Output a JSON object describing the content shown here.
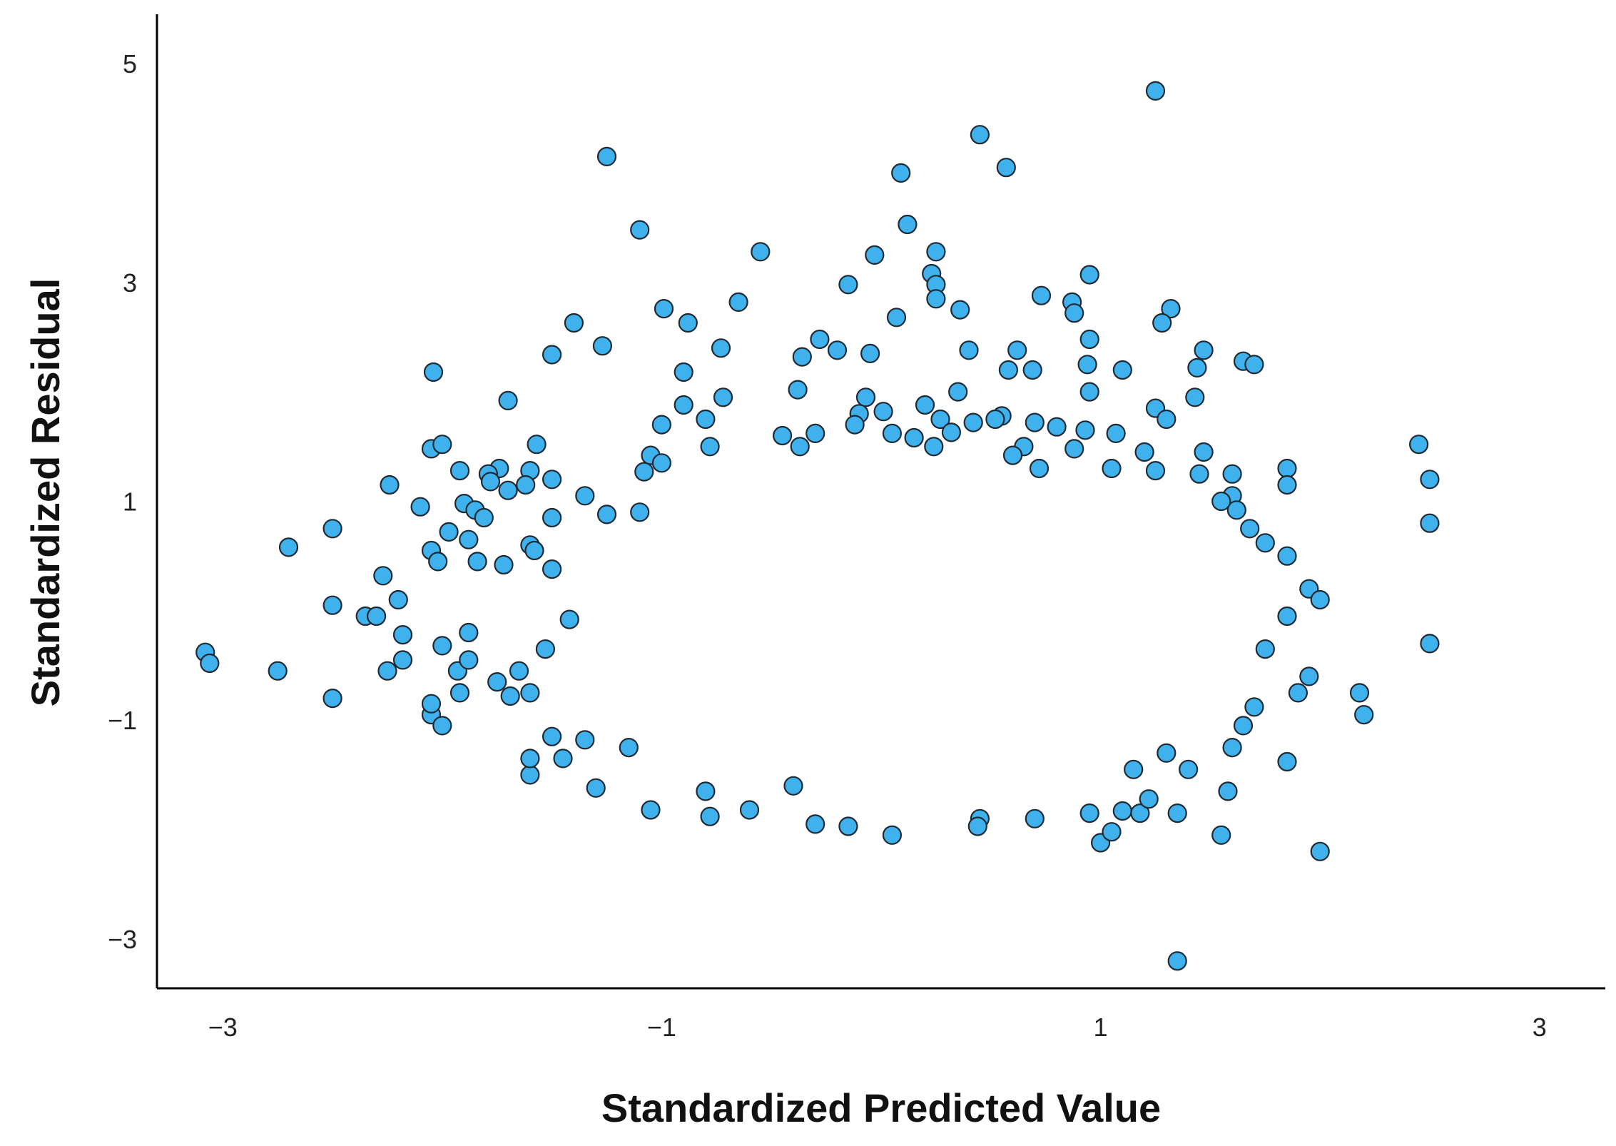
{
  "chart_data": {
    "type": "scatter",
    "title": "",
    "xlabel": "Standardized Predicted Value",
    "ylabel": "Standardized Residual",
    "xlim": [
      -3.3,
      3.3
    ],
    "ylim": [
      -3.45,
      5.45
    ],
    "xticks": [
      -3,
      -1,
      1,
      3
    ],
    "yticks": [
      -3,
      -1,
      1,
      3,
      5
    ],
    "xtick_labels": [
      "−3",
      "−1",
      "1",
      "3"
    ],
    "ytick_labels": [
      "−3",
      "−1",
      "1",
      "3",
      "5"
    ],
    "grid": false,
    "legend": "none",
    "marker": {
      "fill": "#3fb2ee",
      "stroke": "#1f2a33"
    },
    "series": [
      {
        "points": [
          [
            1.25,
            4.75
          ],
          [
            0.45,
            4.35
          ],
          [
            -1.25,
            4.15
          ],
          [
            0.57,
            4.05
          ],
          [
            0.09,
            4.0
          ],
          [
            -1.1,
            3.48
          ],
          [
            0.12,
            3.53
          ],
          [
            -0.55,
            3.28
          ],
          [
            0.25,
            3.28
          ],
          [
            -0.03,
            3.25
          ],
          [
            0.23,
            3.08
          ],
          [
            0.95,
            3.07
          ],
          [
            -0.15,
            2.98
          ],
          [
            0.25,
            2.98
          ],
          [
            0.25,
            2.85
          ],
          [
            0.73,
            2.88
          ],
          [
            0.87,
            2.82
          ],
          [
            -0.65,
            2.82
          ],
          [
            0.36,
            2.75
          ],
          [
            0.88,
            2.72
          ],
          [
            -0.99,
            2.76
          ],
          [
            1.32,
            2.76
          ],
          [
            0.07,
            2.68
          ],
          [
            -1.4,
            2.63
          ],
          [
            -0.88,
            2.63
          ],
          [
            1.28,
            2.63
          ],
          [
            -1.27,
            2.42
          ],
          [
            -1.5,
            2.34
          ],
          [
            -0.28,
            2.48
          ],
          [
            0.95,
            2.48
          ],
          [
            0.4,
            2.38
          ],
          [
            0.62,
            2.38
          ],
          [
            1.47,
            2.38
          ],
          [
            -0.05,
            2.35
          ],
          [
            -0.73,
            2.4
          ],
          [
            -0.36,
            2.32
          ],
          [
            -0.2,
            2.38
          ],
          [
            1.65,
            2.28
          ],
          [
            1.7,
            2.25
          ],
          [
            -2.04,
            2.18
          ],
          [
            0.69,
            2.2
          ],
          [
            1.44,
            2.22
          ],
          [
            1.1,
            2.2
          ],
          [
            -0.9,
            2.18
          ],
          [
            0.58,
            2.2
          ],
          [
            0.94,
            2.25
          ],
          [
            -0.38,
            2.02
          ],
          [
            0.35,
            2.0
          ],
          [
            0.95,
            2.0
          ],
          [
            -0.07,
            1.95
          ],
          [
            0.2,
            1.88
          ],
          [
            0.55,
            1.78
          ],
          [
            1.25,
            1.85
          ],
          [
            1.43,
            1.95
          ],
          [
            1.3,
            1.75
          ],
          [
            -0.72,
            1.95
          ],
          [
            -1.7,
            1.92
          ],
          [
            -0.9,
            1.88
          ],
          [
            0.01,
            1.82
          ],
          [
            -0.1,
            1.8
          ],
          [
            0.27,
            1.75
          ],
          [
            0.42,
            1.72
          ],
          [
            0.52,
            1.75
          ],
          [
            0.7,
            1.72
          ],
          [
            0.8,
            1.68
          ],
          [
            -0.8,
            1.75
          ],
          [
            -1.0,
            1.7
          ],
          [
            -0.12,
            1.7
          ],
          [
            0.05,
            1.62
          ],
          [
            0.32,
            1.63
          ],
          [
            0.93,
            1.65
          ],
          [
            1.07,
            1.62
          ],
          [
            -0.45,
            1.6
          ],
          [
            -0.3,
            1.62
          ],
          [
            0.15,
            1.58
          ],
          [
            -0.78,
            1.5
          ],
          [
            -2.05,
            1.48
          ],
          [
            -1.57,
            1.52
          ],
          [
            -2.0,
            1.52
          ],
          [
            -0.37,
            1.5
          ],
          [
            0.24,
            1.5
          ],
          [
            0.65,
            1.5
          ],
          [
            0.88,
            1.48
          ],
          [
            1.2,
            1.45
          ],
          [
            -1.05,
            1.42
          ],
          [
            -1.0,
            1.35
          ],
          [
            0.6,
            1.42
          ],
          [
            1.47,
            1.45
          ],
          [
            2.45,
            1.52
          ],
          [
            2.5,
            1.2
          ],
          [
            -1.74,
            1.3
          ],
          [
            -1.6,
            1.28
          ],
          [
            -1.92,
            1.28
          ],
          [
            -1.79,
            1.25
          ],
          [
            -1.08,
            1.27
          ],
          [
            0.72,
            1.3
          ],
          [
            1.05,
            1.3
          ],
          [
            1.25,
            1.28
          ],
          [
            1.45,
            1.25
          ],
          [
            1.6,
            1.25
          ],
          [
            1.85,
            1.3
          ],
          [
            -1.78,
            1.18
          ],
          [
            -1.62,
            1.15
          ],
          [
            -2.24,
            1.15
          ],
          [
            -1.5,
            1.2
          ],
          [
            1.85,
            1.15
          ],
          [
            -1.7,
            1.1
          ],
          [
            -1.35,
            1.05
          ],
          [
            1.6,
            1.05
          ],
          [
            -1.9,
            0.98
          ],
          [
            -1.85,
            0.92
          ],
          [
            -1.5,
            0.85
          ],
          [
            -1.25,
            0.88
          ],
          [
            -1.1,
            0.9
          ],
          [
            -2.1,
            0.95
          ],
          [
            -1.81,
            0.85
          ],
          [
            -2.5,
            0.75
          ],
          [
            -1.97,
            0.72
          ],
          [
            -1.88,
            0.65
          ],
          [
            -1.6,
            0.6
          ],
          [
            -1.58,
            0.55
          ],
          [
            -2.05,
            0.55
          ],
          [
            -2.02,
            0.45
          ],
          [
            -1.84,
            0.45
          ],
          [
            -1.72,
            0.42
          ],
          [
            -1.5,
            0.38
          ],
          [
            -2.7,
            0.58
          ],
          [
            -2.5,
            0.05
          ],
          [
            -2.35,
            -0.05
          ],
          [
            -2.25,
            -0.55
          ],
          [
            -2.2,
            0.1
          ],
          [
            -2.3,
            -0.05
          ],
          [
            -2.27,
            0.32
          ],
          [
            -2.18,
            -0.22
          ],
          [
            -2.18,
            -0.45
          ],
          [
            -2.05,
            -0.95
          ],
          [
            -2.05,
            -0.85
          ],
          [
            -2.0,
            -0.32
          ],
          [
            -1.93,
            -0.55
          ],
          [
            -1.92,
            -0.75
          ],
          [
            -1.88,
            -0.2
          ],
          [
            -1.88,
            -0.45
          ],
          [
            -1.75,
            -0.65
          ],
          [
            -1.69,
            -0.78
          ],
          [
            -1.65,
            -0.55
          ],
          [
            -1.6,
            -0.75
          ],
          [
            -1.53,
            -0.35
          ],
          [
            -1.5,
            -1.15
          ],
          [
            -1.42,
            -0.08
          ],
          [
            -1.35,
            -1.18
          ],
          [
            -2.0,
            -1.05
          ],
          [
            -2.5,
            -0.8
          ],
          [
            -2.75,
            -0.55
          ],
          [
            -3.08,
            -0.38
          ],
          [
            -3.06,
            -0.48
          ],
          [
            2.0,
            -2.2
          ],
          [
            1.85,
            -1.38
          ],
          [
            2.18,
            -0.75
          ],
          [
            2.2,
            -0.95
          ],
          [
            1.9,
            -0.75
          ],
          [
            1.7,
            -0.88
          ],
          [
            1.65,
            -1.05
          ],
          [
            1.0,
            -2.12
          ],
          [
            1.05,
            -2.02
          ],
          [
            1.1,
            -1.83
          ],
          [
            0.95,
            -1.85
          ],
          [
            0.7,
            -1.9
          ],
          [
            0.45,
            -1.9
          ],
          [
            0.44,
            -1.97
          ],
          [
            0.05,
            -2.05
          ],
          [
            -0.3,
            -1.95
          ],
          [
            -0.15,
            -1.97
          ],
          [
            -0.78,
            -1.88
          ],
          [
            -0.6,
            -1.82
          ],
          [
            -1.05,
            -1.82
          ],
          [
            -0.4,
            -1.6
          ],
          [
            -0.8,
            -1.65
          ],
          [
            -1.3,
            -1.62
          ],
          [
            -1.15,
            -1.25
          ],
          [
            -1.6,
            -1.5
          ],
          [
            -1.6,
            -1.35
          ],
          [
            -1.45,
            -1.35
          ],
          [
            1.18,
            -1.85
          ],
          [
            1.22,
            -1.72
          ],
          [
            1.35,
            -1.85
          ],
          [
            1.55,
            -2.05
          ],
          [
            1.58,
            -1.65
          ],
          [
            1.6,
            -1.25
          ],
          [
            1.4,
            -1.45
          ],
          [
            1.35,
            -3.2
          ],
          [
            1.3,
            -1.3
          ],
          [
            1.15,
            -1.45
          ],
          [
            1.75,
            -0.35
          ],
          [
            1.85,
            -0.05
          ],
          [
            1.95,
            0.2
          ],
          [
            2.0,
            0.1
          ],
          [
            1.85,
            0.5
          ],
          [
            1.75,
            0.62
          ],
          [
            1.68,
            0.75
          ],
          [
            1.62,
            0.92
          ],
          [
            1.55,
            1.0
          ],
          [
            2.5,
            0.8
          ],
          [
            2.5,
            -0.3
          ],
          [
            1.95,
            -0.6
          ]
        ]
      }
    ]
  }
}
